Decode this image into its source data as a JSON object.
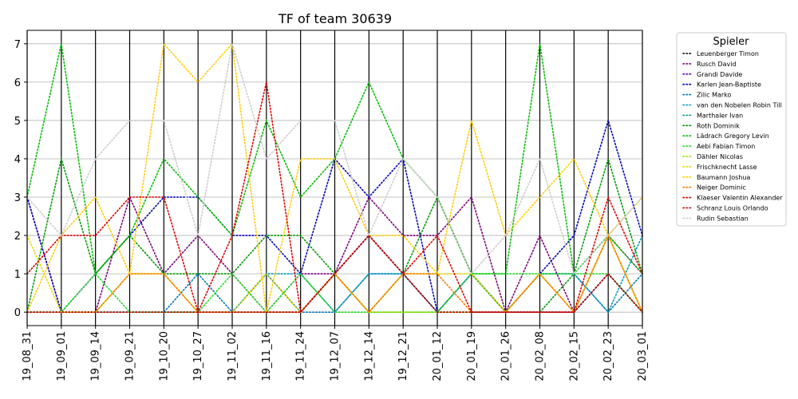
{
  "chart_data": {
    "type": "line",
    "title": "TF of team 30639",
    "xlabel": "",
    "ylabel": "",
    "ylim": [
      -0.35,
      7.35
    ],
    "yticks": [
      0,
      1,
      2,
      3,
      4,
      5,
      6,
      7
    ],
    "grid": "horizontal at y ticks, vertical at x ticks",
    "legend_placement": "outside right",
    "legend_title": "Spieler",
    "categories": [
      "19_08_31",
      "19_09_01",
      "19_09_14",
      "19_09_21",
      "19_10_20",
      "19_10_27",
      "19_11_02",
      "19_11_16",
      "19_11_24",
      "19_12_07",
      "19_12_14",
      "19_12_21",
      "20_01_12",
      "20_01_19",
      "20_01_26",
      "20_02_08",
      "20_02_15",
      "20_02_23",
      "20_03_01"
    ],
    "series": [
      {
        "name": "Leuenberger Timon",
        "color": "#000000",
        "values": [
          0,
          0,
          0,
          0,
          0,
          0,
          0,
          0,
          0,
          1,
          2,
          1,
          0,
          0,
          0,
          0,
          0,
          1,
          0
        ]
      },
      {
        "name": "Rusch David",
        "color": "#7a007a",
        "values": [
          3,
          0,
          0,
          3,
          1,
          2,
          1,
          0,
          1,
          1,
          3,
          2,
          2,
          3,
          0,
          2,
          0,
          2,
          1
        ]
      },
      {
        "name": "Grandi Davide",
        "color": "#6600aa",
        "values": [
          0,
          0,
          0,
          0,
          0,
          0,
          0,
          0,
          0,
          1,
          2,
          1,
          0,
          0,
          0,
          0,
          0,
          1,
          0
        ]
      },
      {
        "name": "Karlen Jean-Baptiste",
        "color": "#0000bb",
        "values": [
          3,
          0,
          1,
          2,
          3,
          3,
          2,
          2,
          1,
          4,
          3,
          4,
          0,
          1,
          0,
          1,
          2,
          5,
          2
        ]
      },
      {
        "name": "Zilic Marko",
        "color": "#0077bb",
        "values": [
          0,
          0,
          0,
          0,
          0,
          1,
          0,
          1,
          0,
          0,
          1,
          1,
          0,
          1,
          0,
          1,
          1,
          0,
          1
        ]
      },
      {
        "name": "van den Nobelen Robin Till",
        "color": "#0099bb",
        "values": [
          0,
          0,
          0,
          0,
          0,
          0,
          0,
          1,
          1,
          0,
          1,
          1,
          0,
          1,
          0,
          1,
          1,
          0,
          2
        ]
      },
      {
        "name": "Marthaler Ivan",
        "color": "#009999",
        "values": [
          0,
          0,
          0,
          0,
          0,
          0,
          0,
          0,
          0,
          1,
          2,
          1,
          0,
          0,
          0,
          0,
          0,
          1,
          0
        ]
      },
      {
        "name": "Roth Dominik",
        "color": "#009900",
        "values": [
          0,
          4,
          1,
          2,
          1,
          1,
          1,
          2,
          2,
          1,
          0,
          1,
          3,
          1,
          0,
          0,
          1,
          4,
          1
        ]
      },
      {
        "name": "Lädrach Gregory Levin",
        "color": "#00bb00",
        "values": [
          3,
          7,
          1,
          2,
          4,
          3,
          2,
          5,
          3,
          4,
          6,
          4,
          3,
          1,
          1,
          7,
          1,
          2,
          1
        ]
      },
      {
        "name": "Aebi Fabian Timon",
        "color": "#22dd22",
        "values": [
          0,
          0,
          1,
          0,
          0,
          0,
          1,
          0,
          1,
          0,
          0,
          0,
          0,
          1,
          1,
          1,
          1,
          1,
          0
        ]
      },
      {
        "name": "Dähler Nicolas",
        "color": "#99dd00",
        "values": [
          0,
          0,
          0,
          0,
          0,
          0,
          0,
          0,
          0,
          1,
          0,
          0,
          0,
          0,
          0,
          1,
          0,
          2,
          0
        ]
      },
      {
        "name": "Frischknecht Lasse",
        "color": "#dddd00",
        "values": [
          2,
          0,
          0,
          1,
          1,
          0,
          0,
          1,
          0,
          1,
          0,
          1,
          1,
          1,
          0,
          1,
          0,
          2,
          0
        ]
      },
      {
        "name": "Baumann Joshua",
        "color": "#ffcc00",
        "values": [
          0,
          2,
          3,
          1,
          7,
          6,
          7,
          0,
          4,
          4,
          2,
          2,
          1,
          5,
          2,
          3,
          4,
          2,
          3
        ]
      },
      {
        "name": "Neiger Dominic",
        "color": "#ff7700",
        "values": [
          0,
          0,
          0,
          1,
          1,
          0,
          0,
          0,
          0,
          1,
          0,
          1,
          1,
          0,
          0,
          1,
          0,
          2,
          0
        ]
      },
      {
        "name": "Klaeser Valentin Alexander",
        "color": "#dd0000",
        "values": [
          1,
          2,
          2,
          3,
          3,
          0,
          2,
          6,
          0,
          1,
          2,
          1,
          2,
          0,
          0,
          0,
          0,
          3,
          1
        ]
      },
      {
        "name": "Schranz Louis Orlando",
        "color": "#bb0000",
        "values": [
          0,
          0,
          0,
          0,
          0,
          0,
          0,
          0,
          0,
          1,
          2,
          1,
          0,
          0,
          0,
          0,
          0,
          1,
          0
        ]
      },
      {
        "name": "Rudin Sebastian",
        "color": "#cccccc",
        "values": [
          3,
          2,
          4,
          5,
          5,
          2,
          7,
          4,
          5,
          5,
          2,
          4,
          3,
          1,
          2,
          4,
          1,
          2,
          3
        ]
      }
    ]
  }
}
